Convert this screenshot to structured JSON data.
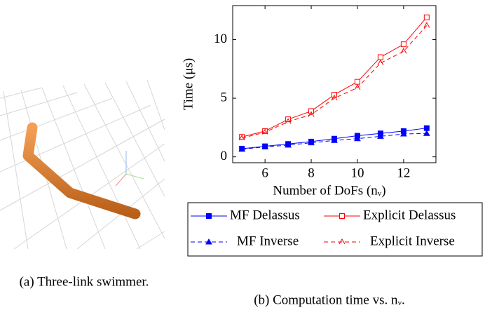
{
  "figure": {
    "caption_a": "(a) Three-link swimmer.",
    "caption_b": "(b) Computation time vs. nᵥ."
  },
  "chart_data": {
    "type": "line",
    "xlabel": "Number of DoFs (nᵥ)",
    "ylabel": "Time (μs)",
    "x": [
      5,
      6,
      7,
      8,
      9,
      10,
      11,
      12,
      13
    ],
    "xlim": [
      4.6,
      13.4
    ],
    "ylim": [
      -0.5,
      12.9
    ],
    "xticks": [
      6,
      8,
      10,
      12
    ],
    "yticks": [
      0,
      5,
      10
    ],
    "grid": false,
    "series": [
      {
        "name": "MF Delassus",
        "color": "#0000ff",
        "marker": "square",
        "filled": true,
        "dashed": false,
        "values": [
          0.7,
          0.9,
          1.1,
          1.3,
          1.55,
          1.8,
          2.0,
          2.2,
          2.45
        ]
      },
      {
        "name": "Explicit Delassus",
        "color": "#ff0000",
        "marker": "square",
        "filled": false,
        "dashed": false,
        "values": [
          1.7,
          2.2,
          3.2,
          3.9,
          5.3,
          6.4,
          8.5,
          9.6,
          11.9
        ]
      },
      {
        "name": "MF Inverse",
        "color": "#0000ff",
        "marker": "triangle",
        "filled": true,
        "dashed": true,
        "values": [
          0.65,
          0.85,
          1.0,
          1.2,
          1.4,
          1.55,
          1.75,
          1.95,
          2.0
        ]
      },
      {
        "name": "Explicit Inverse",
        "color": "#ff0000",
        "marker": "triangle",
        "filled": false,
        "dashed": true,
        "values": [
          1.6,
          2.1,
          3.0,
          3.6,
          5.0,
          5.9,
          8.0,
          9.0,
          11.2
        ]
      }
    ]
  }
}
